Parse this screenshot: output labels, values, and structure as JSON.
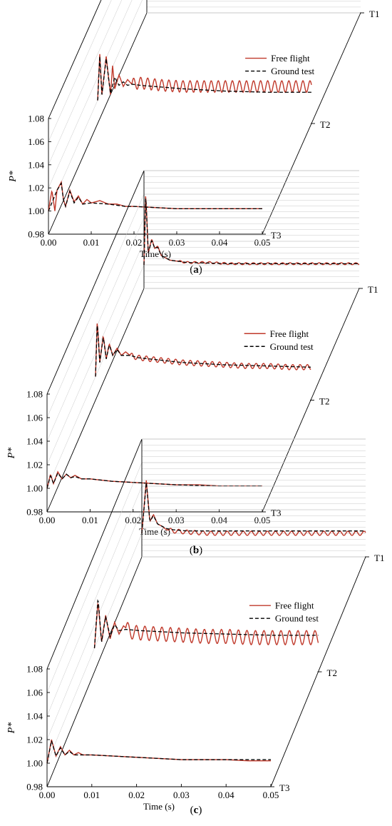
{
  "figure": {
    "legend": [
      "Free flight",
      "Ground test"
    ],
    "colors": {
      "free_flight": "#c0392b",
      "ground_test": "#000000",
      "axis": "#000000",
      "grid": "#c8c8c8"
    }
  },
  "chart_data": [
    {
      "type": "line",
      "panel_label": "(a)",
      "panel_letter": "a",
      "xlabel": "Time (s)",
      "ylabel": "P*",
      "xlim": [
        0,
        0.05
      ],
      "ylim": [
        0.98,
        1.08
      ],
      "xticks": [
        "0.00",
        "0.01",
        "0.02",
        "0.03",
        "0.04",
        "0.05"
      ],
      "yticks": [
        "0.98",
        "1.00",
        "1.02",
        "1.04",
        "1.06",
        "1.08"
      ],
      "depth_labels": [
        "T1",
        "T2",
        "T3"
      ],
      "series": [
        {
          "name": "Free flight",
          "depth": "T3",
          "x": [
            0.0,
            0.0008,
            0.0015,
            0.002,
            0.003,
            0.0035,
            0.004,
            0.005,
            0.006,
            0.007,
            0.008,
            0.009,
            0.01,
            0.012,
            0.014,
            0.016,
            0.018,
            0.02,
            0.025,
            0.03,
            0.035,
            0.04,
            0.045,
            0.05
          ],
          "y": [
            1.0,
            1.018,
            1.0,
            1.018,
            1.025,
            1.01,
            1.004,
            1.018,
            1.008,
            1.013,
            1.006,
            1.01,
            1.007,
            1.009,
            1.006,
            1.006,
            1.004,
            1.004,
            1.003,
            1.002,
            1.002,
            1.002,
            1.002,
            1.002
          ]
        },
        {
          "name": "Ground test",
          "depth": "T3",
          "x": [
            0.0,
            0.002,
            0.003,
            0.0035,
            0.004,
            0.005,
            0.006,
            0.007,
            0.008,
            0.01,
            0.014,
            0.018,
            0.02,
            0.025,
            0.03,
            0.035,
            0.04,
            0.045,
            0.05
          ],
          "y": [
            1.0,
            1.018,
            1.024,
            1.01,
            1.004,
            1.017,
            1.007,
            1.012,
            1.006,
            1.007,
            1.006,
            1.004,
            1.004,
            1.003,
            1.002,
            1.002,
            1.002,
            1.002,
            1.002
          ]
        },
        {
          "name": "Free flight",
          "depth": "T2",
          "x": [
            0.0,
            0.0005,
            0.001,
            0.002,
            0.003,
            0.0035,
            0.004,
            0.005,
            0.006,
            0.007,
            0.008,
            0.01,
            0.015,
            0.02,
            0.025,
            0.03,
            0.035,
            0.04,
            0.045,
            0.05
          ],
          "y": [
            1.0,
            1.04,
            1.005,
            1.038,
            1.005,
            1.03,
            1.01,
            1.022,
            1.012,
            1.018,
            1.014,
            1.015,
            1.013,
            1.012,
            1.012,
            1.012,
            1.012,
            1.012,
            1.012,
            1.012
          ],
          "oscillation": {
            "amplitude": 0.005,
            "period": 0.00165,
            "from": 0.008
          }
        },
        {
          "name": "Ground test",
          "depth": "T2",
          "x": [
            0.0,
            0.0005,
            0.001,
            0.002,
            0.003,
            0.004,
            0.005,
            0.006,
            0.007,
            0.008,
            0.01,
            0.02,
            0.03,
            0.04,
            0.05
          ],
          "y": [
            1.0,
            1.038,
            1.005,
            1.036,
            1.006,
            1.02,
            1.013,
            1.016,
            1.013,
            1.014,
            1.013,
            1.01,
            1.008,
            1.007,
            1.007
          ]
        },
        {
          "name": "Free flight",
          "depth": "T1",
          "x": [
            0.0,
            0.0003,
            0.0008,
            0.0015,
            0.002,
            0.0025,
            0.003,
            0.004,
            0.005,
            0.006,
            0.008,
            0.01,
            0.015,
            0.02,
            0.025,
            0.03,
            0.035,
            0.04,
            0.045,
            0.05
          ],
          "y": [
            1.0,
            1.06,
            1.075,
            1.0,
            1.02,
            1.028,
            1.014,
            1.006,
            1.004,
            1.003,
            1.002,
            1.001,
            1.001,
            1.001,
            1.001,
            1.001,
            1.001,
            1.001,
            1.001,
            1.001
          ],
          "oscillation": {
            "amplitude": 0.0018,
            "period": 0.0018,
            "from": 0.006
          }
        },
        {
          "name": "Ground test",
          "depth": "T1",
          "x": [
            0.0,
            0.0003,
            0.0008,
            0.0015,
            0.002,
            0.0025,
            0.003,
            0.004,
            0.005,
            0.006,
            0.008,
            0.01,
            0.02,
            0.03,
            0.04,
            0.05
          ],
          "y": [
            1.0,
            1.058,
            1.073,
            1.0,
            1.018,
            1.026,
            1.012,
            1.006,
            1.004,
            1.003,
            1.002,
            1.001,
            1.001,
            1.001,
            1.001,
            1.001
          ]
        }
      ]
    },
    {
      "type": "line",
      "panel_label": "(b)",
      "panel_letter": "b",
      "xlabel": "Time (s)",
      "ylabel": "P*",
      "xlim": [
        0,
        0.05
      ],
      "ylim": [
        0.98,
        1.08
      ],
      "xticks": [
        "0.00",
        "0.01",
        "0.02",
        "0.03",
        "0.04",
        "0.05"
      ],
      "yticks": [
        "0.98",
        "1.00",
        "1.02",
        "1.04",
        "1.06",
        "1.08"
      ],
      "depth_labels": [
        "T1",
        "T2",
        "T3"
      ],
      "series": [
        {
          "name": "Free flight",
          "depth": "T3",
          "x": [
            0.0,
            0.0008,
            0.0015,
            0.0025,
            0.0035,
            0.0045,
            0.0055,
            0.0065,
            0.008,
            0.01,
            0.015,
            0.02,
            0.025,
            0.03,
            0.035,
            0.04,
            0.045,
            0.05
          ],
          "y": [
            1.0,
            1.012,
            1.004,
            1.014,
            1.008,
            1.012,
            1.009,
            1.011,
            1.008,
            1.008,
            1.006,
            1.005,
            1.004,
            1.003,
            1.003,
            1.002,
            1.002,
            1.002
          ]
        },
        {
          "name": "Ground test",
          "depth": "T3",
          "x": [
            0.0,
            0.0008,
            0.0015,
            0.0025,
            0.0035,
            0.0045,
            0.0055,
            0.0065,
            0.008,
            0.01,
            0.015,
            0.02,
            0.03,
            0.04,
            0.05
          ],
          "y": [
            1.0,
            1.011,
            1.004,
            1.013,
            1.008,
            1.012,
            1.009,
            1.01,
            1.008,
            1.008,
            1.006,
            1.005,
            1.003,
            1.002,
            1.002
          ]
        },
        {
          "name": "Free flight",
          "depth": "T2",
          "x": [
            0.0,
            0.0004,
            0.001,
            0.0018,
            0.0025,
            0.0032,
            0.004,
            0.005,
            0.006,
            0.007,
            0.008,
            0.01,
            0.015,
            0.02,
            0.025,
            0.03,
            0.035,
            0.04,
            0.045,
            0.05
          ],
          "y": [
            1.0,
            1.048,
            1.012,
            1.035,
            1.015,
            1.028,
            1.018,
            1.024,
            1.018,
            1.021,
            1.018,
            1.016,
            1.014,
            1.012,
            1.011,
            1.01,
            1.009,
            1.009,
            1.008,
            1.008
          ],
          "oscillation": {
            "amplitude": 0.0022,
            "period": 0.0017,
            "from": 0.008
          }
        },
        {
          "name": "Ground test",
          "depth": "T2",
          "x": [
            0.0,
            0.0004,
            0.001,
            0.0018,
            0.0025,
            0.0032,
            0.004,
            0.005,
            0.006,
            0.008,
            0.01,
            0.02,
            0.03,
            0.04,
            0.05
          ],
          "y": [
            1.0,
            1.046,
            1.012,
            1.034,
            1.015,
            1.027,
            1.018,
            1.023,
            1.018,
            1.018,
            1.016,
            1.012,
            1.01,
            1.009,
            1.008
          ]
        },
        {
          "name": "Free flight",
          "depth": "T1",
          "x": [
            0.0,
            0.0004,
            0.001,
            0.0018,
            0.0025,
            0.0032,
            0.004,
            0.005,
            0.006,
            0.008,
            0.01,
            0.015,
            0.02,
            0.025,
            0.03,
            0.035,
            0.04,
            0.045,
            0.05
          ],
          "y": [
            1.0,
            1.062,
            1.01,
            1.022,
            1.014,
            1.016,
            1.008,
            1.006,
            1.004,
            1.003,
            1.002,
            1.002,
            1.001,
            1.001,
            1.001,
            1.001,
            1.001,
            1.001,
            1.001
          ],
          "oscillation": {
            "amplitude": 0.0008,
            "period": 0.0017,
            "from": 0.008
          }
        },
        {
          "name": "Ground test",
          "depth": "T1",
          "x": [
            0.0,
            0.0004,
            0.001,
            0.0018,
            0.0025,
            0.0032,
            0.004,
            0.005,
            0.006,
            0.008,
            0.01,
            0.02,
            0.03,
            0.04,
            0.05
          ],
          "y": [
            1.0,
            1.06,
            1.01,
            1.021,
            1.014,
            1.015,
            1.008,
            1.006,
            1.004,
            1.003,
            1.002,
            1.001,
            1.001,
            1.001,
            1.001
          ]
        }
      ]
    },
    {
      "type": "line",
      "panel_label": "(c)",
      "panel_letter": "c",
      "xlabel": "Time (s)",
      "ylabel": "P*",
      "xlim": [
        0,
        0.05
      ],
      "ylim": [
        0.98,
        1.08
      ],
      "xticks": [
        "0.00",
        "0.01",
        "0.02",
        "0.03",
        "0.04",
        "0.05"
      ],
      "yticks": [
        "0.98",
        "1.00",
        "1.02",
        "1.04",
        "1.06",
        "1.08"
      ],
      "depth_labels": [
        "T1",
        "T2",
        "T3"
      ],
      "series": [
        {
          "name": "Free flight",
          "depth": "T3",
          "x": [
            0.0,
            0.001,
            0.002,
            0.003,
            0.004,
            0.005,
            0.006,
            0.007,
            0.008,
            0.01,
            0.015,
            0.02,
            0.025,
            0.03,
            0.035,
            0.04,
            0.045,
            0.05
          ],
          "y": [
            1.0,
            1.02,
            1.006,
            1.014,
            1.007,
            1.011,
            1.007,
            1.009,
            1.007,
            1.007,
            1.006,
            1.005,
            1.004,
            1.003,
            1.003,
            1.003,
            1.002,
            1.002
          ]
        },
        {
          "name": "Ground test",
          "depth": "T3",
          "x": [
            0.0,
            0.001,
            0.002,
            0.003,
            0.004,
            0.005,
            0.006,
            0.008,
            0.01,
            0.015,
            0.02,
            0.03,
            0.04,
            0.05
          ],
          "y": [
            1.0,
            1.019,
            1.006,
            1.013,
            1.007,
            1.01,
            1.007,
            1.007,
            1.007,
            1.006,
            1.005,
            1.003,
            1.003,
            1.003
          ]
        },
        {
          "name": "Free flight",
          "depth": "T2",
          "x": [
            0.0,
            0.0008,
            0.0016,
            0.0025,
            0.0035,
            0.0045,
            0.0055,
            0.0065,
            0.008,
            0.01,
            0.015,
            0.02,
            0.025,
            0.03,
            0.035,
            0.04,
            0.045,
            0.05
          ],
          "y": [
            1.0,
            1.04,
            1.005,
            1.028,
            1.008,
            1.022,
            1.012,
            1.019,
            1.014,
            1.013,
            1.012,
            1.011,
            1.01,
            1.01,
            1.009,
            1.009,
            1.009,
            1.009
          ],
          "oscillation": {
            "amplitude": 0.006,
            "period": 0.0019,
            "from": 0.007
          }
        },
        {
          "name": "Ground test",
          "depth": "T2",
          "x": [
            0.0,
            0.0008,
            0.0016,
            0.0025,
            0.0035,
            0.0045,
            0.0055,
            0.007,
            0.01,
            0.02,
            0.03,
            0.04,
            0.05
          ],
          "y": [
            1.0,
            1.043,
            1.005,
            1.027,
            1.01,
            1.02,
            1.015,
            1.016,
            1.015,
            1.013,
            1.012,
            1.011,
            1.011
          ]
        },
        {
          "name": "Free flight",
          "depth": "T1",
          "x": [
            0.0,
            0.001,
            0.0018,
            0.0026,
            0.0035,
            0.0045,
            0.0055,
            0.007,
            0.01,
            0.015,
            0.02,
            0.025,
            0.03,
            0.035,
            0.04,
            0.045,
            0.05
          ],
          "y": [
            1.0,
            1.045,
            1.01,
            1.016,
            1.008,
            1.006,
            1.003,
            1.002,
            1.001,
            1.0,
            1.0,
            1.0,
            1.0,
            1.0,
            1.0,
            1.0,
            1.0
          ],
          "oscillation": {
            "amplitude": 0.0018,
            "period": 0.0018,
            "from": 0.006
          }
        },
        {
          "name": "Ground test",
          "depth": "T1",
          "x": [
            0.0,
            0.001,
            0.0018,
            0.0026,
            0.0035,
            0.0045,
            0.0055,
            0.007,
            0.01,
            0.02,
            0.03,
            0.04,
            0.05
          ],
          "y": [
            1.0,
            1.043,
            1.01,
            1.015,
            1.008,
            1.006,
            1.004,
            1.003,
            1.002,
            1.002,
            1.002,
            1.002,
            1.002
          ]
        }
      ]
    }
  ]
}
